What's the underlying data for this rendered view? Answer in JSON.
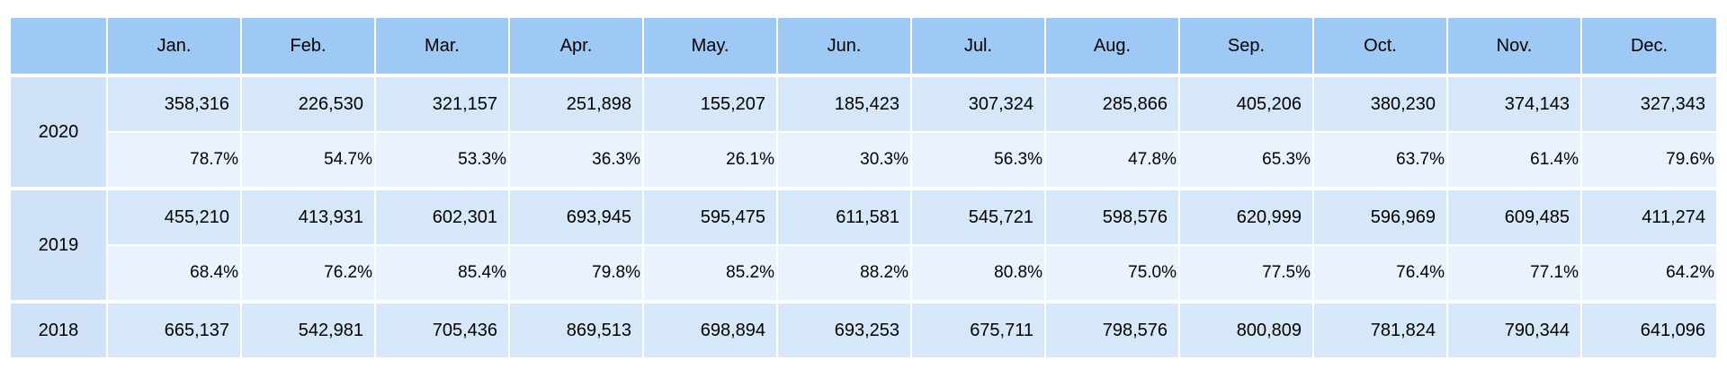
{
  "table": {
    "corner": "",
    "months": [
      "Jan.",
      "Feb.",
      "Mar.",
      "Apr.",
      "May.",
      "Jun.",
      "Jul.",
      "Aug.",
      "Sep.",
      "Oct.",
      "Nov.",
      "Dec."
    ],
    "rows": [
      {
        "year": "2020",
        "values": [
          "358,316",
          "226,530",
          "321,157",
          "251,898",
          "155,207",
          "185,423",
          "307,324",
          "285,866",
          "405,206",
          "380,230",
          "374,143",
          "327,343"
        ],
        "percents": [
          "78.7%",
          "54.7%",
          "53.3%",
          "36.3%",
          "26.1%",
          "30.3%",
          "56.3%",
          "47.8%",
          "65.3%",
          "63.7%",
          "61.4%",
          "79.6%"
        ]
      },
      {
        "year": "2019",
        "values": [
          "455,210",
          "413,931",
          "602,301",
          "693,945",
          "595,475",
          "611,581",
          "545,721",
          "598,576",
          "620,999",
          "596,969",
          "609,485",
          "411,274"
        ],
        "percents": [
          "68.4%",
          "76.2%",
          "85.4%",
          "79.8%",
          "85.2%",
          "88.2%",
          "80.8%",
          "75.0%",
          "77.5%",
          "76.4%",
          "77.1%",
          "64.2%"
        ]
      },
      {
        "year": "2018",
        "values": [
          "665,137",
          "542,981",
          "705,436",
          "869,513",
          "698,894",
          "693,253",
          "675,711",
          "798,576",
          "800,809",
          "781,824",
          "790,344",
          "641,096"
        ]
      }
    ]
  }
}
